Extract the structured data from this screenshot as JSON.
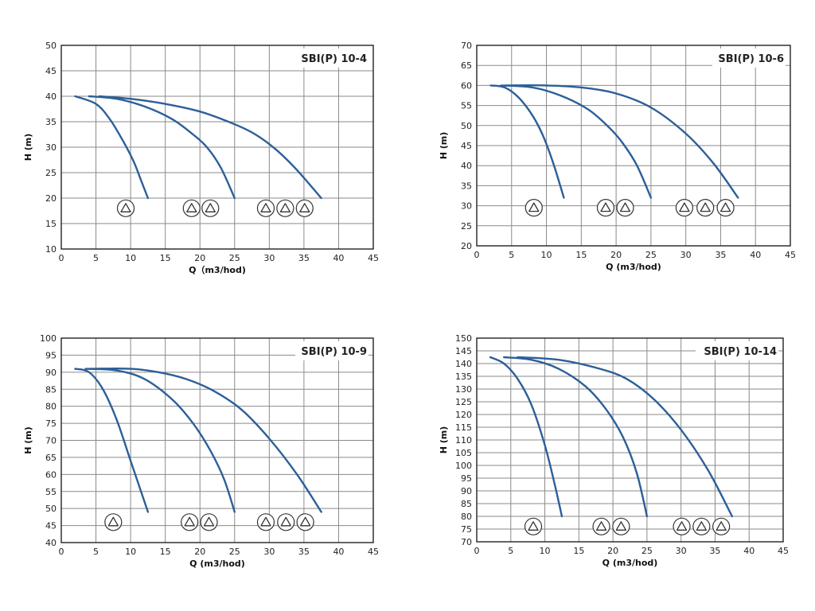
{
  "chart_data": [
    {
      "type": "line",
      "title": "SBI(P) 10-4",
      "xlabel": "Q（m3/hod)",
      "ylabel": "H (m)",
      "xlim": [
        0,
        45
      ],
      "ylim": [
        10,
        50
      ],
      "xticks": [
        0,
        5,
        10,
        15,
        20,
        25,
        30,
        35,
        40,
        45
      ],
      "yticks": [
        10,
        15,
        20,
        25,
        30,
        35,
        40,
        45,
        50
      ],
      "grid": true,
      "series": [
        {
          "x": [
            2,
            5,
            7,
            9,
            10.5,
            11.5,
            12.5
          ],
          "y": [
            40,
            38.5,
            35.5,
            31,
            27,
            23.5,
            20
          ]
        },
        {
          "x": [
            4,
            8,
            12,
            16,
            19,
            21,
            23,
            25
          ],
          "y": [
            40,
            39.5,
            38,
            35.5,
            32.5,
            30,
            26,
            20
          ]
        },
        {
          "x": [
            5.5,
            10,
            15,
            20,
            25,
            28,
            31,
            34,
            37.5
          ],
          "y": [
            40,
            39.5,
            38.5,
            37,
            34.5,
            32.5,
            29.5,
            25.5,
            20
          ]
        }
      ],
      "symbol_groups": [
        {
          "y": 18,
          "x": [
            9.3
          ]
        },
        {
          "y": 18,
          "x": [
            18.8,
            21.5
          ]
        },
        {
          "y": 18,
          "x": [
            29.5,
            32.3,
            35.1
          ]
        }
      ]
    },
    {
      "type": "line",
      "title": "SBI(P) 10-6",
      "xlabel": "Q (m3/hod)",
      "ylabel": "H (m)",
      "xlim": [
        0,
        45
      ],
      "ylim": [
        20,
        70
      ],
      "xticks": [
        0,
        5,
        10,
        15,
        20,
        25,
        30,
        35,
        40,
        45
      ],
      "yticks": [
        20,
        25,
        30,
        35,
        40,
        45,
        50,
        55,
        60,
        65,
        70
      ],
      "grid": true,
      "series": [
        {
          "x": [
            2,
            4,
            6,
            8,
            9.5,
            11,
            12.5
          ],
          "y": [
            60,
            59.5,
            57,
            52.5,
            47.5,
            40.5,
            32
          ]
        },
        {
          "x": [
            3.5,
            8,
            12,
            16,
            19,
            21,
            23,
            25
          ],
          "y": [
            60,
            59.5,
            57.5,
            54,
            49.5,
            45.5,
            40,
            32
          ]
        },
        {
          "x": [
            4,
            10,
            15,
            20,
            25,
            30,
            34,
            37.5
          ],
          "y": [
            60,
            60,
            59.5,
            58,
            54.5,
            48,
            40.5,
            32
          ]
        }
      ],
      "symbol_groups": [
        {
          "y": 29.5,
          "x": [
            8.2
          ]
        },
        {
          "y": 29.5,
          "x": [
            18.5,
            21.3
          ]
        },
        {
          "y": 29.5,
          "x": [
            29.8,
            32.8,
            35.7
          ]
        }
      ]
    },
    {
      "type": "line",
      "title": "SBI(P) 10-9",
      "xlabel": "Q (m3/hod)",
      "ylabel": "H (m)",
      "xlim": [
        0,
        45
      ],
      "ylim": [
        40,
        100
      ],
      "xticks": [
        0,
        5,
        10,
        15,
        20,
        25,
        30,
        35,
        40,
        45
      ],
      "yticks": [
        40,
        45,
        50,
        55,
        60,
        65,
        70,
        75,
        80,
        85,
        90,
        95,
        100
      ],
      "grid": true,
      "series": [
        {
          "x": [
            2,
            4,
            6,
            8,
            10,
            11.5,
            12.5
          ],
          "y": [
            91,
            90,
            85,
            76,
            64,
            55,
            49
          ]
        },
        {
          "x": [
            3.5,
            8,
            12,
            16,
            19,
            21.5,
            23.5,
            25
          ],
          "y": [
            91,
            90.5,
            88,
            82,
            75,
            67,
            58.5,
            49
          ]
        },
        {
          "x": [
            4,
            10,
            14,
            18,
            22,
            26,
            30,
            34,
            37.5
          ],
          "y": [
            91,
            91,
            90,
            88,
            84.5,
            79,
            70.5,
            60,
            49
          ]
        }
      ],
      "symbol_groups": [
        {
          "y": 46,
          "x": [
            7.5
          ]
        },
        {
          "y": 46,
          "x": [
            18.5,
            21.3
          ]
        },
        {
          "y": 46,
          "x": [
            29.5,
            32.4,
            35.2
          ]
        }
      ]
    },
    {
      "type": "line",
      "title": "SBI(P) 10-14",
      "xlabel": "Q (m3/hod)",
      "ylabel": "H (m)",
      "xlim": [
        0,
        45
      ],
      "ylim": [
        70,
        150
      ],
      "xticks": [
        0,
        5,
        10,
        15,
        20,
        25,
        30,
        35,
        40,
        45
      ],
      "yticks": [
        70,
        75,
        80,
        85,
        90,
        95,
        100,
        105,
        110,
        115,
        120,
        125,
        130,
        135,
        140,
        145,
        150
      ],
      "grid": true,
      "series": [
        {
          "x": [
            2,
            4,
            6,
            8,
            10,
            11.5,
            12.5
          ],
          "y": [
            142.5,
            140,
            134,
            124,
            108,
            92,
            80
          ]
        },
        {
          "x": [
            4,
            8,
            12,
            16,
            19,
            21.5,
            23.5,
            25
          ],
          "y": [
            142.5,
            141.5,
            138,
            131,
            122,
            111,
            97,
            80
          ]
        },
        {
          "x": [
            6,
            12,
            18,
            22,
            26,
            30,
            34,
            37.5
          ],
          "y": [
            142.5,
            141.5,
            138,
            134,
            126,
            114,
            98,
            80
          ]
        }
      ],
      "symbol_groups": [
        {
          "y": 76,
          "x": [
            8.3
          ]
        },
        {
          "y": 76,
          "x": [
            18.3,
            21.2
          ]
        },
        {
          "y": 76,
          "x": [
            30.1,
            33,
            35.9
          ]
        }
      ]
    }
  ]
}
